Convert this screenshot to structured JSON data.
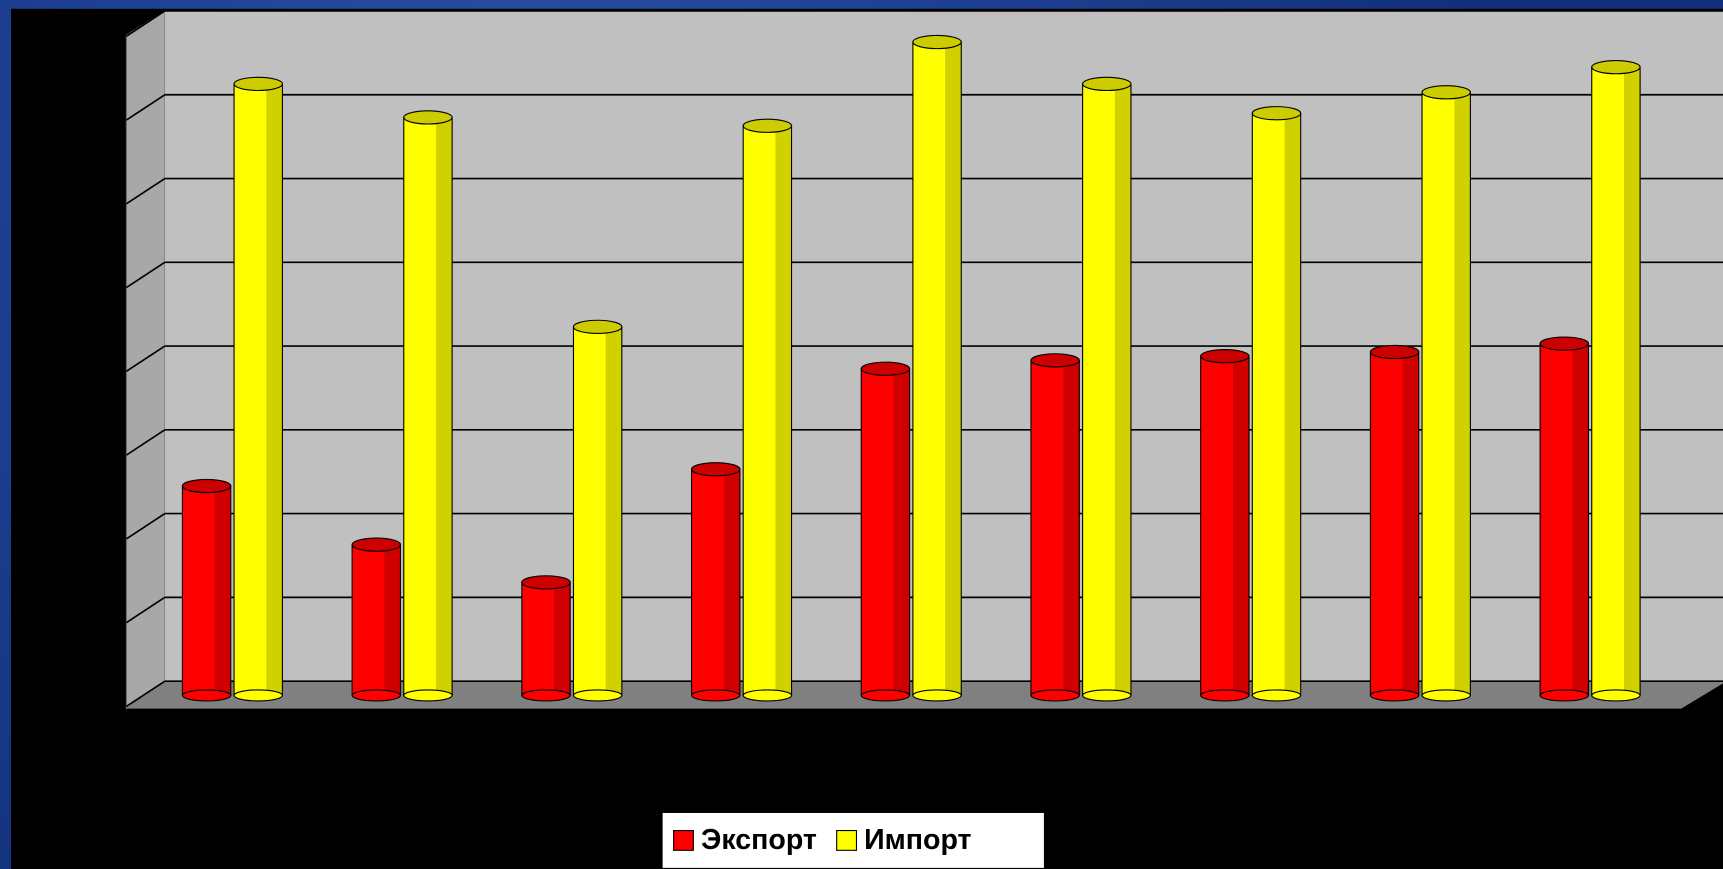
{
  "chart_data": {
    "type": "bar",
    "categories": [
      null,
      null,
      null,
      null,
      null,
      null,
      null,
      null,
      null
    ],
    "series": [
      {
        "name": "Экспорт",
        "color": "#ff0000",
        "values": [
          2.5,
          1.8,
          1.35,
          2.7,
          3.9,
          4.0,
          4.05,
          4.1,
          4.2
        ]
      },
      {
        "name": "Импорт",
        "color": "#ffff00",
        "values": [
          7.3,
          6.9,
          4.4,
          6.8,
          7.8,
          7.3,
          6.95,
          7.2,
          7.5
        ]
      }
    ],
    "ylim": [
      0,
      8
    ],
    "yticks": [
      0,
      1,
      2,
      3,
      4,
      5,
      6,
      7,
      8
    ],
    "grid": true,
    "legend": "bottom"
  }
}
